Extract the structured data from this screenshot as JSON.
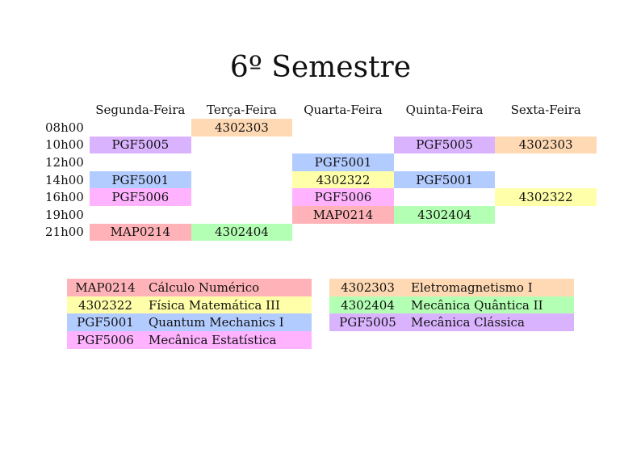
{
  "title": "6º Semestre",
  "colors": {
    "MAP0214": "#ffb3b8",
    "4302322": "#ffffaa",
    "PGF5001": "#b3ccff",
    "PGF5006": "#ffb3ff",
    "4302303": "#ffd9b3",
    "4302404": "#b3ffb3",
    "PGF5005": "#dab3ff"
  },
  "days": [
    "Segunda-Feira",
    "Terça-Feira",
    "Quarta-Feira",
    "Quinta-Feira",
    "Sexta-Feira"
  ],
  "rows": [
    {
      "time": "08h00",
      "cells": [
        "",
        "4302303",
        "",
        "",
        ""
      ]
    },
    {
      "time": "10h00",
      "cells": [
        "PGF5005",
        "",
        "",
        "PGF5005",
        "4302303"
      ]
    },
    {
      "time": "12h00",
      "cells": [
        "",
        "",
        "PGF5001",
        "",
        ""
      ]
    },
    {
      "time": "14h00",
      "cells": [
        "PGF5001",
        "",
        "4302322",
        "PGF5001",
        ""
      ]
    },
    {
      "time": "16h00",
      "cells": [
        "PGF5006",
        "",
        "PGF5006",
        "",
        "4302322"
      ]
    },
    {
      "time": "19h00",
      "cells": [
        "",
        "",
        "MAP0214",
        "4302404",
        ""
      ]
    },
    {
      "time": "21h00",
      "cells": [
        "MAP0214",
        "4302404",
        "",
        "",
        ""
      ]
    }
  ],
  "legend_left": [
    {
      "code": "MAP0214",
      "name": "Cálculo Numérico"
    },
    {
      "code": "4302322",
      "name": "Física Matemática III"
    },
    {
      "code": "PGF5001",
      "name": "Quantum Mechanics I"
    },
    {
      "code": "PGF5006",
      "name": "Mecânica Estatística"
    }
  ],
  "legend_right": [
    {
      "code": "4302303",
      "name": "Eletromagnetismo I"
    },
    {
      "code": "4302404",
      "name": "Mecânica Quântica II"
    },
    {
      "code": "PGF5005",
      "name": "Mecânica Clássica"
    }
  ]
}
